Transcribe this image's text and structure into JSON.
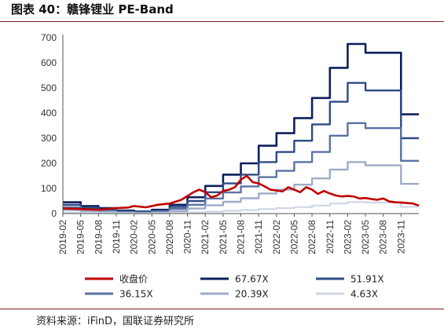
{
  "title": "图表 40：赣锋锂业 PE-Band",
  "source": "资料来源：iFinD，国联证券研究所",
  "chart_data": {
    "type": "line",
    "yticks": [
      0,
      100,
      200,
      300,
      400,
      500,
      600,
      700
    ],
    "ylim": [
      0,
      700
    ],
    "xlim": [
      "2019-02",
      "2024-02"
    ],
    "xticks": [
      "2019-02",
      "2019-05",
      "2019-08",
      "2019-11",
      "2020-02",
      "2020-05",
      "2020-08",
      "2020-11",
      "2021-02",
      "2021-05",
      "2021-08",
      "2021-11",
      "2022-02",
      "2022-05",
      "2022-08",
      "2022-11",
      "2023-02",
      "2023-05",
      "2023-08",
      "2023-11"
    ],
    "grid": false,
    "legend_position": "bottom",
    "eps_periods": [
      "2019-02",
      "2019-05",
      "2019-08",
      "2019-11",
      "2020-02",
      "2020-05",
      "2020-08",
      "2020-11",
      "2021-02",
      "2021-05",
      "2021-08",
      "2021-11",
      "2022-02",
      "2022-05",
      "2022-08",
      "2022-11",
      "2023-02",
      "2023-05",
      "2023-08",
      "2023-11"
    ],
    "series": [
      {
        "name": "收盘价",
        "color": "#c00000",
        "width": 2.6,
        "x": [
          "2019-02",
          "2019-05",
          "2019-08",
          "2019-11",
          "2020-01",
          "2020-02",
          "2020-04",
          "2020-06",
          "2020-08",
          "2020-10",
          "2020-12",
          "2021-01",
          "2021-02",
          "2021-03",
          "2021-04",
          "2021-05",
          "2021-06",
          "2021-07",
          "2021-08",
          "2021-09",
          "2021-10",
          "2021-11",
          "2021-12",
          "2022-01",
          "2022-02",
          "2022-03",
          "2022-04",
          "2022-05",
          "2022-06",
          "2022-07",
          "2022-08",
          "2022-09",
          "2022-10",
          "2022-11",
          "2022-12",
          "2023-01",
          "2023-02",
          "2023-03",
          "2023-04",
          "2023-05",
          "2023-06",
          "2023-07",
          "2023-08",
          "2023-09",
          "2023-10",
          "2023-11",
          "2023-12",
          "2024-01",
          "2024-02"
        ],
        "y": [
          20,
          18,
          15,
          22,
          24,
          30,
          25,
          35,
          40,
          55,
          85,
          95,
          85,
          65,
          72,
          90,
          95,
          105,
          135,
          150,
          125,
          120,
          108,
          95,
          92,
          88,
          105,
          95,
          85,
          105,
          95,
          78,
          90,
          80,
          72,
          68,
          70,
          68,
          60,
          62,
          58,
          55,
          60,
          48,
          45,
          44,
          42,
          40,
          32
        ]
      },
      {
        "name": "67.67X",
        "color": "#0d1f5c",
        "width": 2.6,
        "y": [
          45,
          30,
          22,
          12,
          8,
          15,
          35,
          65,
          110,
          155,
          200,
          270,
          320,
          380,
          460,
          580,
          675,
          640,
          640,
          395
        ]
      },
      {
        "name": "51.91X",
        "color": "#2e4a86",
        "width": 2.4,
        "y": [
          35,
          22,
          16,
          9,
          6,
          11,
          27,
          50,
          85,
          120,
          155,
          205,
          245,
          290,
          355,
          445,
          520,
          490,
          490,
          300
        ]
      },
      {
        "name": "36.15X",
        "color": "#5a72a2",
        "width": 2.4,
        "y": [
          25,
          15,
          11,
          6,
          4,
          8,
          19,
          35,
          60,
          84,
          108,
          145,
          170,
          205,
          245,
          310,
          360,
          340,
          340,
          210
        ]
      },
      {
        "name": "20.39X",
        "color": "#9eacc8",
        "width": 2.4,
        "y": [
          14,
          9,
          6,
          3,
          2,
          4,
          10,
          20,
          33,
          47,
          61,
          80,
          95,
          115,
          140,
          175,
          205,
          192,
          192,
          118
        ]
      },
      {
        "name": "4.63X",
        "color": "#cfd6e4",
        "width": 2.2,
        "y": [
          3,
          2,
          1.5,
          1,
          0.5,
          1,
          2.5,
          4.5,
          7.5,
          11,
          14,
          18,
          22,
          26,
          32,
          40,
          46,
          44,
          44,
          27
        ]
      }
    ]
  }
}
